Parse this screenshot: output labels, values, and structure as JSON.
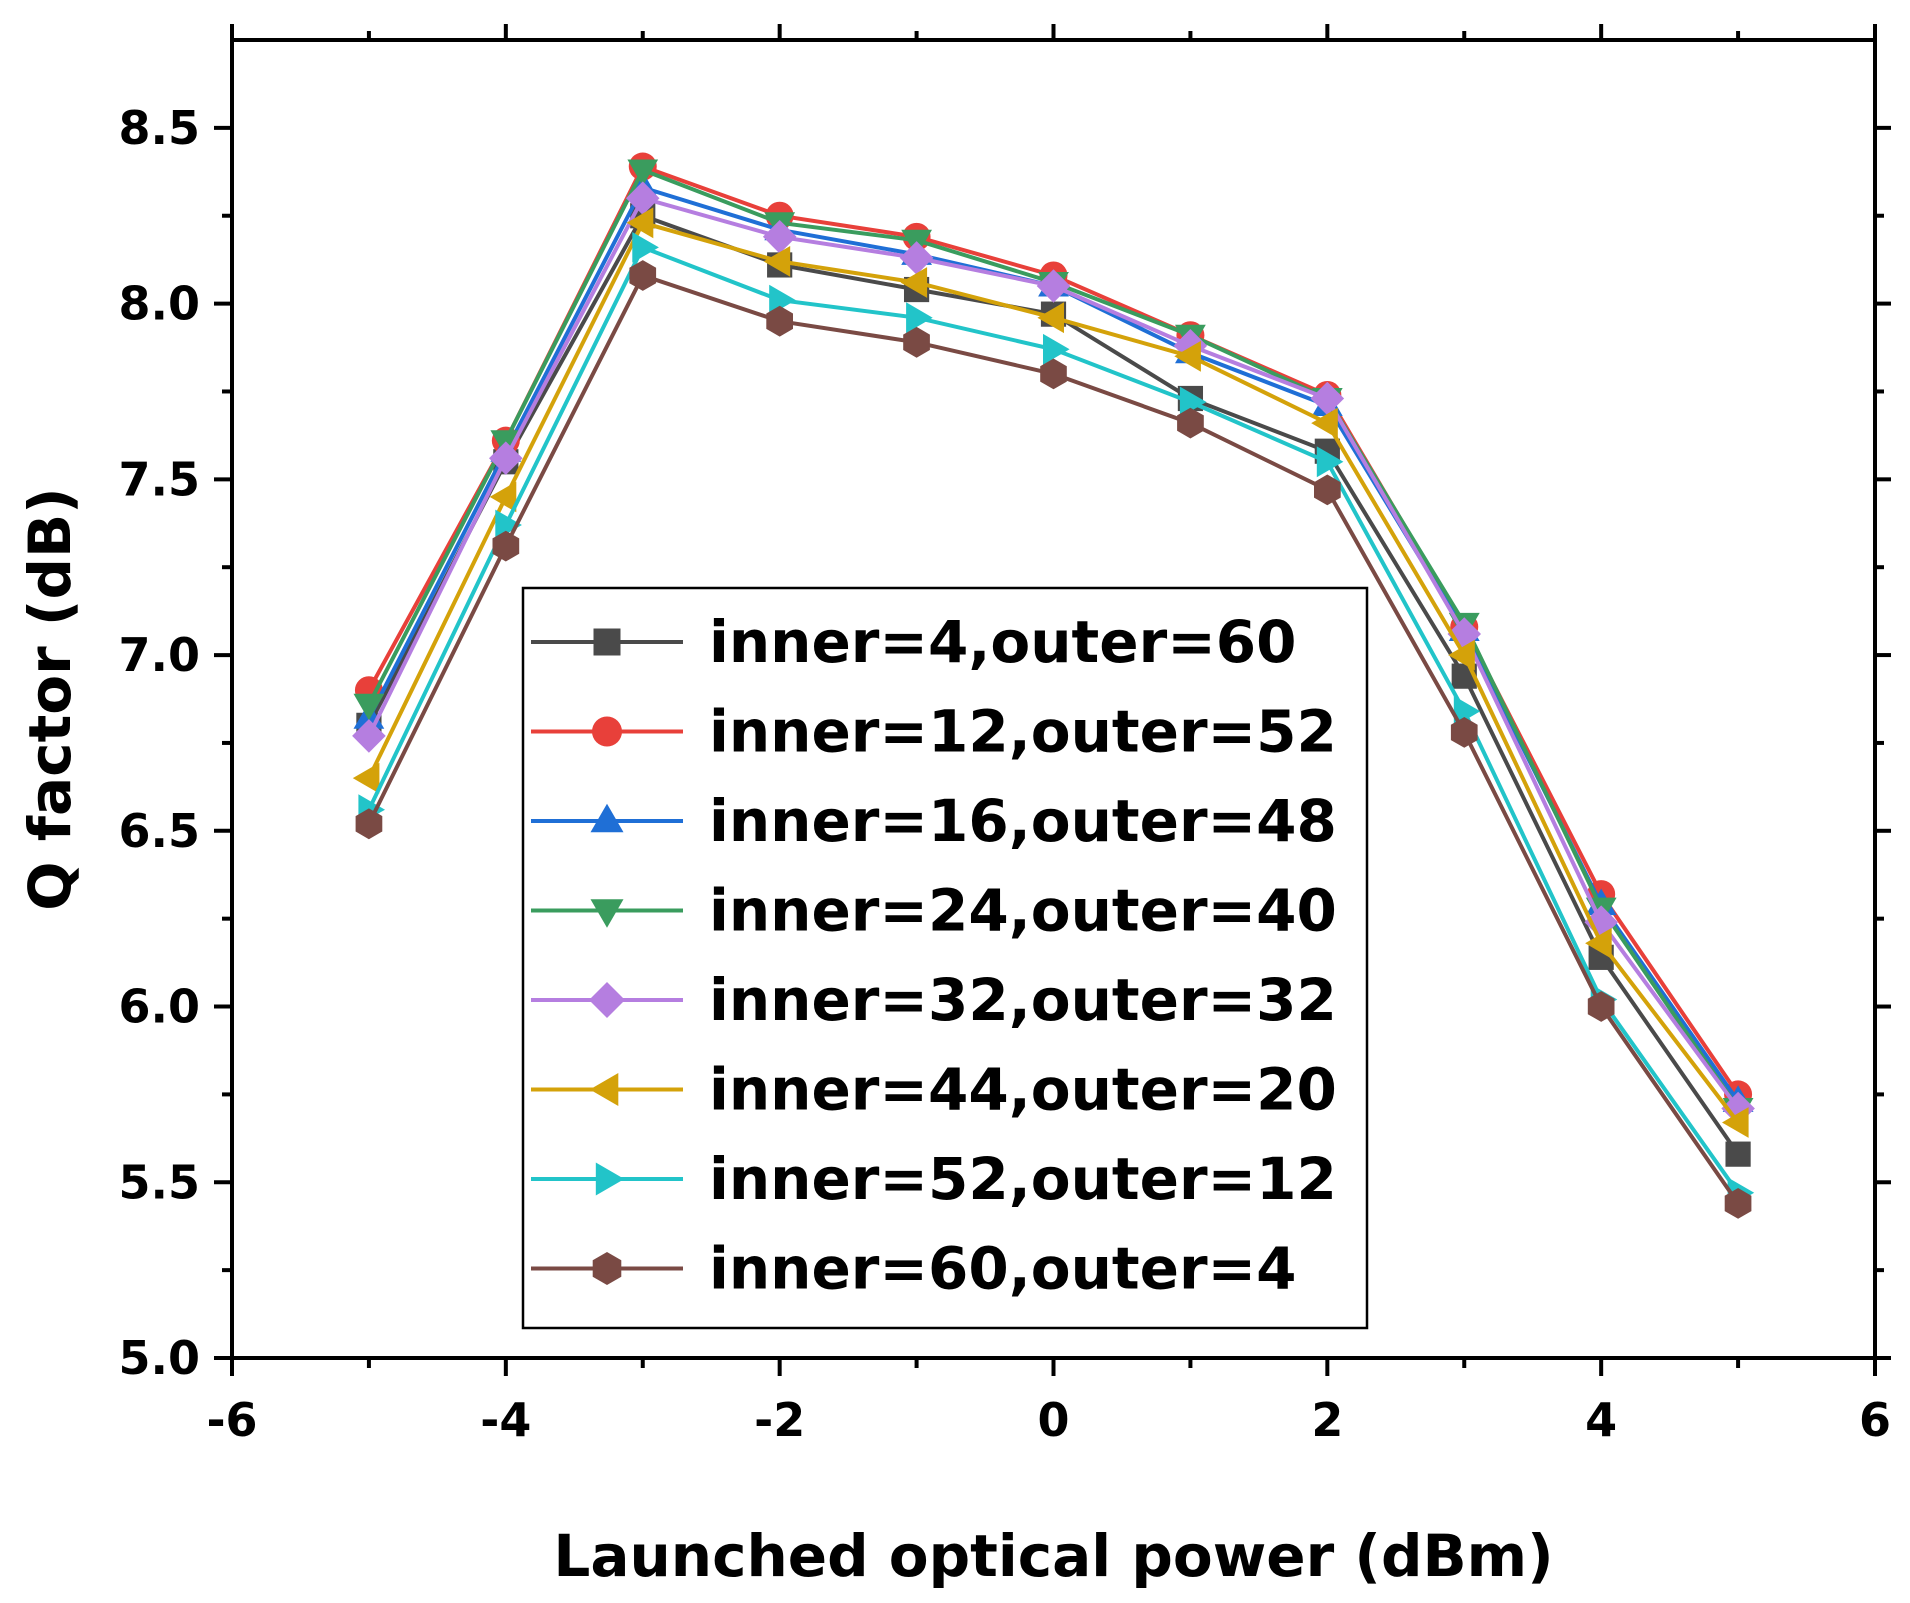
{
  "chart_data": {
    "type": "line",
    "title": "",
    "xlabel": "Launched optical power (dBm)",
    "ylabel": "Q factor (dB)",
    "xlim": [
      -6,
      6
    ],
    "ylim": [
      5.0,
      8.75
    ],
    "x_ticks": [
      -6,
      -4,
      -2,
      0,
      2,
      4,
      6
    ],
    "y_ticks": [
      5.0,
      5.5,
      6.0,
      6.5,
      7.0,
      7.5,
      8.0,
      8.5
    ],
    "x_tick_labels": [
      "-6",
      "-4",
      "-2",
      "0",
      "2",
      "4",
      "6"
    ],
    "y_tick_labels": [
      "5.0",
      "5.5",
      "6.0",
      "6.5",
      "7.0",
      "7.5",
      "8.0",
      "8.5"
    ],
    "legend_position": "center-left",
    "x": [
      -5,
      -4,
      -3,
      -2,
      -1,
      0,
      1,
      2,
      3,
      4,
      5
    ],
    "series": [
      {
        "name": "inner=4,outer=60",
        "color": "#4a4a4a",
        "marker": "square",
        "values": [
          6.8,
          7.55,
          8.25,
          8.11,
          8.04,
          7.97,
          7.73,
          7.58,
          6.94,
          6.14,
          5.58
        ]
      },
      {
        "name": "inner=12,outer=52",
        "color": "#e8403a",
        "marker": "circle",
        "values": [
          6.9,
          7.61,
          8.39,
          8.25,
          8.19,
          8.08,
          7.91,
          7.74,
          7.08,
          6.32,
          5.75
        ]
      },
      {
        "name": "inner=16,outer=48",
        "color": "#1f6fd6",
        "marker": "triangle-up",
        "values": [
          6.82,
          7.58,
          8.33,
          8.21,
          8.14,
          8.05,
          7.86,
          7.71,
          7.07,
          6.29,
          5.73
        ]
      },
      {
        "name": "inner=24,outer=40",
        "color": "#3a9c5e",
        "marker": "triangle-down",
        "values": [
          6.86,
          7.61,
          8.38,
          8.23,
          8.18,
          8.06,
          7.91,
          7.73,
          7.09,
          6.28,
          5.71
        ]
      },
      {
        "name": "inner=32,outer=32",
        "color": "#b57ee0",
        "marker": "diamond",
        "values": [
          6.77,
          7.56,
          8.3,
          8.19,
          8.13,
          8.05,
          7.88,
          7.73,
          7.06,
          6.24,
          5.71
        ]
      },
      {
        "name": "inner=44,outer=20",
        "color": "#d4a20a",
        "marker": "triangle-left",
        "values": [
          6.65,
          7.45,
          8.23,
          8.12,
          8.06,
          7.96,
          7.85,
          7.66,
          7.0,
          6.18,
          5.67
        ]
      },
      {
        "name": "inner=52,outer=12",
        "color": "#22c4c9",
        "marker": "triangle-right",
        "values": [
          6.56,
          7.37,
          8.16,
          8.01,
          7.96,
          7.87,
          7.72,
          7.55,
          6.84,
          6.02,
          5.47
        ]
      },
      {
        "name": "inner=60,outer=4",
        "color": "#7a4a44",
        "marker": "hexagon",
        "values": [
          6.52,
          7.31,
          8.08,
          7.95,
          7.89,
          7.8,
          7.66,
          7.47,
          6.78,
          6.0,
          5.44
        ]
      }
    ]
  }
}
